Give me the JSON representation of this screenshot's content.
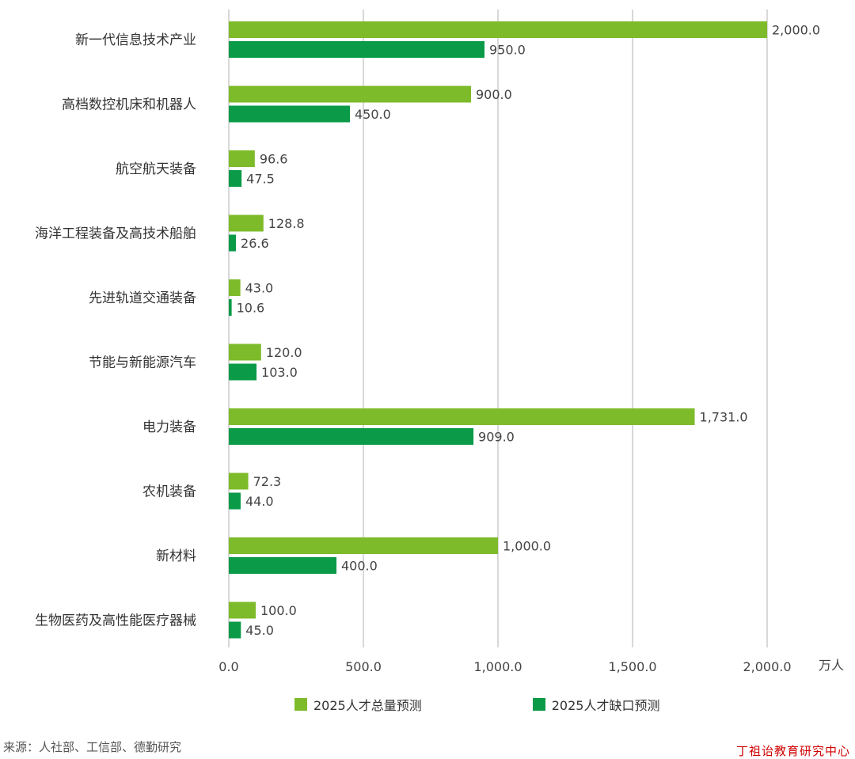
{
  "chart_data": {
    "type": "bar",
    "orientation": "horizontal",
    "categories": [
      "新一代信息技术产业",
      "高档数控机床和机器人",
      "航空航天装备",
      "海洋工程装备及高技术船舶",
      "先进轨道交通装备",
      "节能与新能源汽车",
      "电力装备",
      "农机装备",
      "新材料",
      "生物医药及高性能医疗器械"
    ],
    "series": [
      {
        "name": "2025人才总量预测",
        "color": "#7dbb2a",
        "values": [
          2000.0,
          900.0,
          96.6,
          128.8,
          43.0,
          120.0,
          1731.0,
          72.3,
          1000.0,
          100.0
        ],
        "labels": [
          "2,000.0",
          "900.0",
          "96.6",
          "128.8",
          "43.0",
          "120.0",
          "1,731.0",
          "72.3",
          "1,000.0",
          "100.0"
        ]
      },
      {
        "name": "2025人才缺口预测",
        "color": "#0a9a48",
        "values": [
          950.0,
          450.0,
          47.5,
          26.6,
          10.6,
          103.0,
          909.0,
          44.0,
          400.0,
          45.0
        ],
        "labels": [
          "950.0",
          "450.0",
          "47.5",
          "26.6",
          "10.6",
          "103.0",
          "909.0",
          "44.0",
          "400.0",
          "45.0"
        ]
      }
    ],
    "xlim": [
      0,
      2000
    ],
    "xticks": [
      0,
      500,
      1000,
      1500,
      2000
    ],
    "xtick_labels": [
      "0.0",
      "500.0",
      "1,000.0",
      "1,500.0",
      "2,000.0"
    ],
    "unit": "万人",
    "grid": true,
    "legend_position": "bottom"
  },
  "source_text": "来源：人社部、工信部、德勤研究",
  "watermark_text": "丁祖诒教育研究中心",
  "colors": {
    "total": "#7dbb2a",
    "gap": "#0a9a48",
    "grid": "#bfbfbf"
  }
}
